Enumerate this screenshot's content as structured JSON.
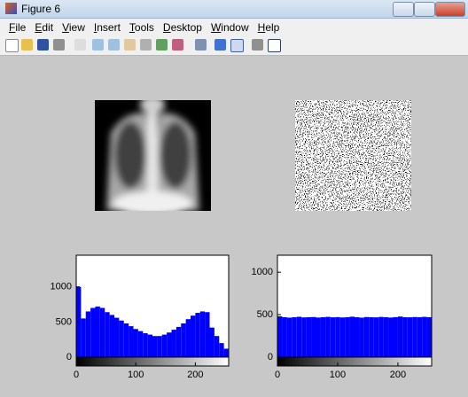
{
  "window": {
    "title": "Figure 6"
  },
  "menu": [
    "File",
    "Edit",
    "View",
    "Insert",
    "Tools",
    "Desktop",
    "Window",
    "Help"
  ],
  "chart_data": [
    {
      "type": "histogram",
      "color": "#0000ff",
      "bins": [
        0,
        8,
        16,
        24,
        32,
        40,
        48,
        56,
        64,
        72,
        80,
        88,
        96,
        104,
        112,
        120,
        128,
        136,
        144,
        152,
        160,
        168,
        176,
        184,
        192,
        200,
        208,
        216,
        224,
        232,
        240,
        248,
        256
      ],
      "values": [
        1000,
        550,
        650,
        700,
        720,
        700,
        640,
        600,
        560,
        520,
        480,
        440,
        400,
        370,
        340,
        320,
        300,
        300,
        320,
        350,
        390,
        430,
        480,
        540,
        590,
        630,
        650,
        640,
        420,
        300,
        200,
        120
      ],
      "xlim": [
        0,
        256
      ],
      "ylim": [
        0,
        1450
      ],
      "xticks": [
        0,
        100,
        200
      ],
      "yticks": [
        0,
        500,
        1000
      ]
    },
    {
      "type": "histogram",
      "color": "#0000ff",
      "bins": [
        0,
        8,
        16,
        24,
        32,
        40,
        48,
        56,
        64,
        72,
        80,
        88,
        96,
        104,
        112,
        120,
        128,
        136,
        144,
        152,
        160,
        168,
        176,
        184,
        192,
        200,
        208,
        216,
        224,
        232,
        240,
        248,
        256
      ],
      "values": [
        480,
        470,
        465,
        470,
        475,
        468,
        470,
        472,
        466,
        470,
        474,
        469,
        471,
        467,
        470,
        476,
        470,
        465,
        472,
        470,
        468,
        473,
        470,
        466,
        471,
        478,
        470,
        469,
        472,
        470,
        474,
        470
      ],
      "xlim": [
        0,
        256
      ],
      "ylim": [
        0,
        1200
      ],
      "xticks": [
        0,
        100,
        200
      ],
      "yticks": [
        0,
        500,
        1000
      ]
    }
  ]
}
